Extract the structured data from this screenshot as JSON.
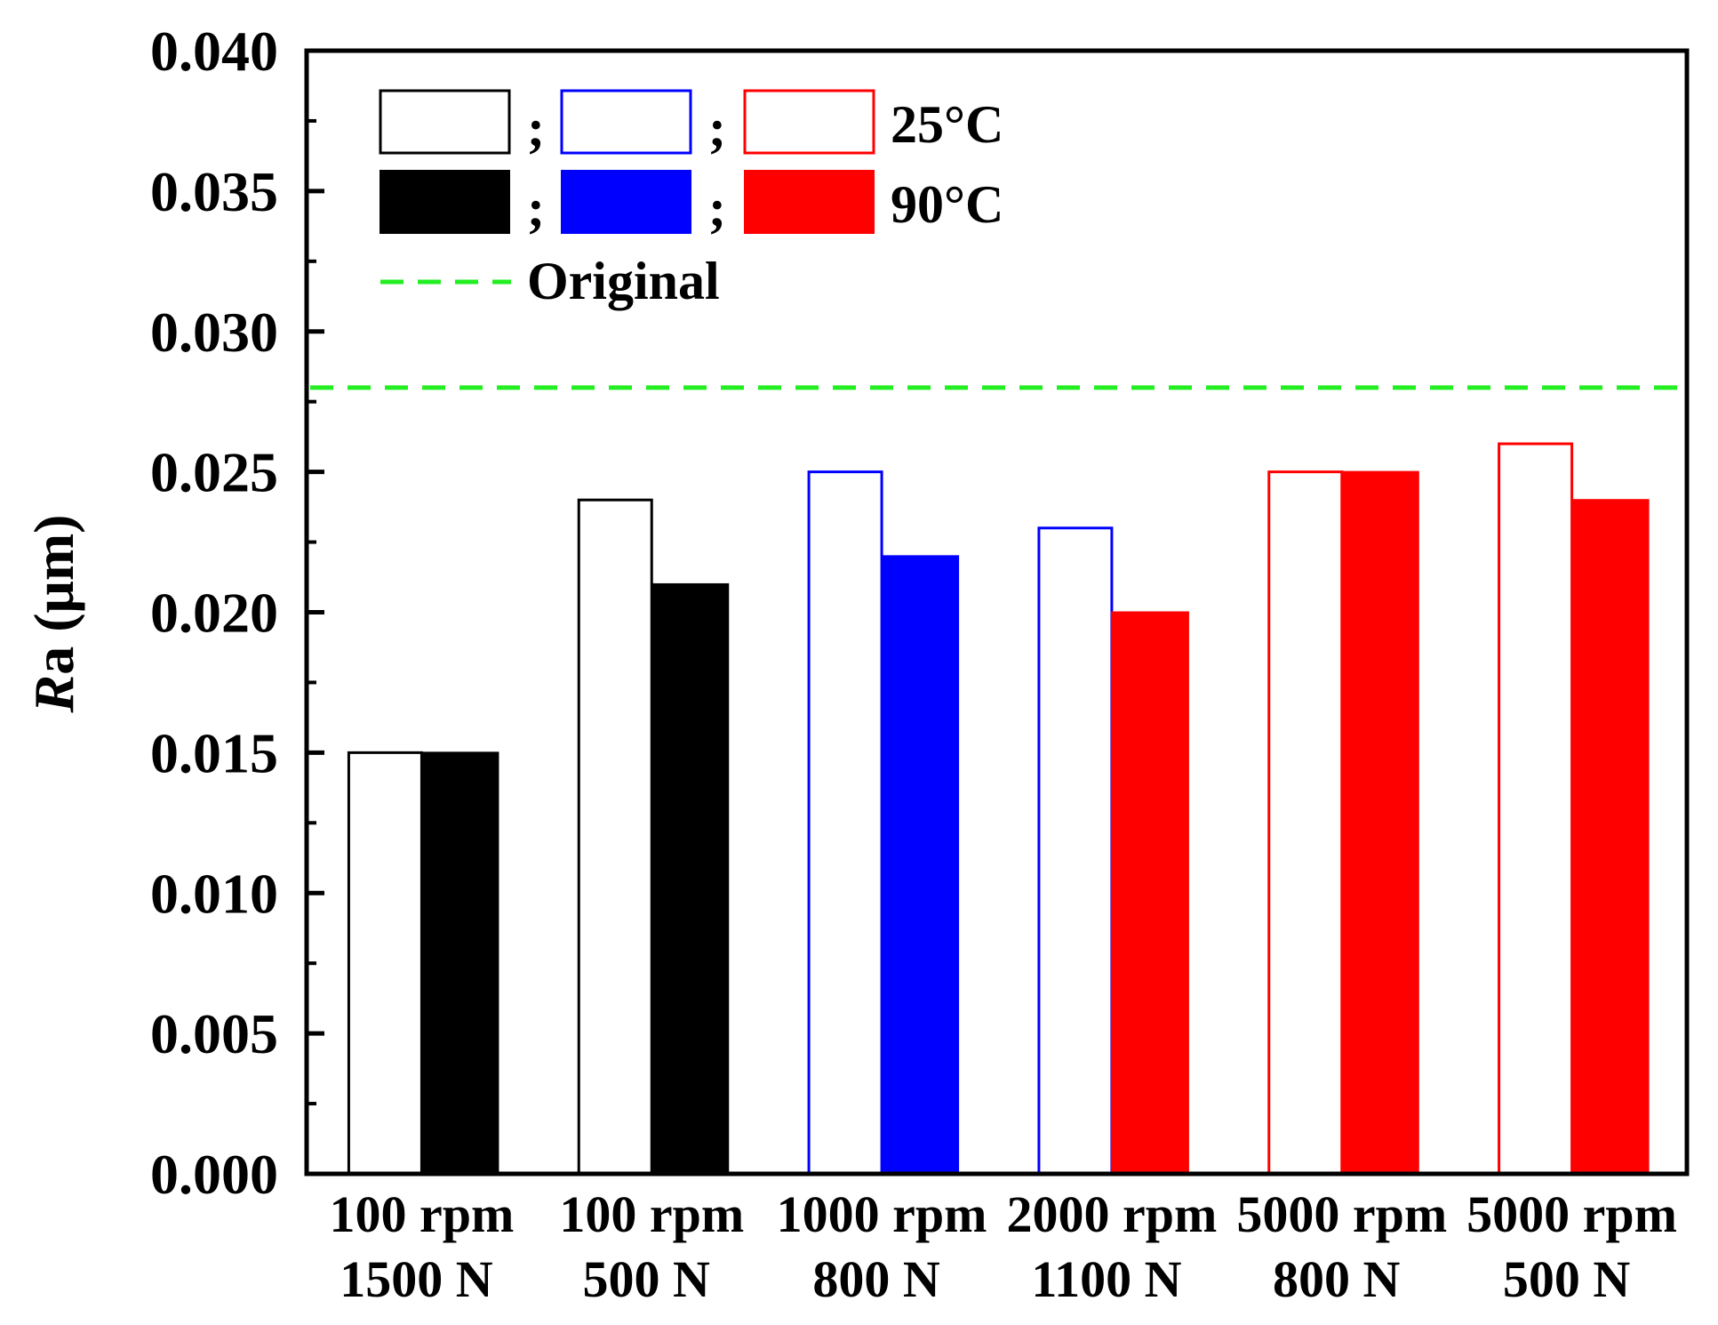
{
  "chart_data": {
    "type": "bar",
    "title": "",
    "ylabel_italic": "R",
    "ylabel_rest": "a (μm)",
    "xlabel": "",
    "ylim": [
      0,
      0.04
    ],
    "yticks": [
      "0.000",
      "0.005",
      "0.010",
      "0.015",
      "0.020",
      "0.025",
      "0.030",
      "0.035",
      "0.040"
    ],
    "yminor_step": 0.0025,
    "categories": [
      {
        "line1": "100 rpm",
        "line2": "1500 N",
        "color": "#000000"
      },
      {
        "line1": "100 rpm",
        "line2": "500 N",
        "color": "#000000"
      },
      {
        "line1": "1000 rpm",
        "line2": "800 N",
        "color": "#0000ff"
      },
      {
        "line1": "2000 rpm",
        "line2": "1100 N",
        "color": "#0000ff"
      },
      {
        "line1": "5000 rpm",
        "line2": "800 N",
        "color": "#ff0000"
      },
      {
        "line1": "5000 rpm",
        "line2": "500 N",
        "color": "#ff0000"
      }
    ],
    "series": [
      {
        "name": "25°C",
        "style": "outline",
        "values": [
          0.015,
          0.024,
          0.025,
          0.023,
          0.025,
          0.026
        ]
      },
      {
        "name": "90°C",
        "style": "filled",
        "values": [
          0.015,
          0.021,
          0.022,
          0.02,
          0.025,
          0.024
        ]
      }
    ],
    "filled_color_override": [
      "#000000",
      "#000000",
      "#0000ff",
      "#ff0000",
      "#ff0000",
      "#ff0000"
    ],
    "reference_line": {
      "name": "Original",
      "value": 0.028,
      "color": "#22ee22"
    },
    "legend": {
      "placement": "top-left",
      "swatch_colors": [
        "#000000",
        "#0000ff",
        "#ff0000"
      ],
      "separator": ";",
      "rows": [
        "25°C",
        "90°C"
      ],
      "line_label": "Original"
    }
  }
}
